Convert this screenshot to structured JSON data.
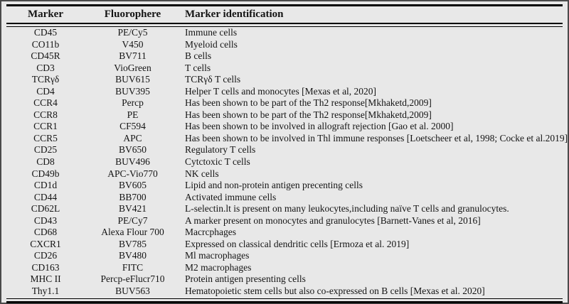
{
  "colors": {
    "page_background": "#e8e8e8",
    "text": "#141414",
    "rule": "#000000",
    "outer_frame": "#4a4a4a"
  },
  "table": {
    "columns": {
      "marker": "Marker",
      "fluorophore": "Fluorophere",
      "identification": "Marker identification"
    },
    "rows": [
      {
        "marker": "CD45",
        "fluorophore": "PE/Cy5",
        "identification": "Immune cells"
      },
      {
        "marker": "CO11b",
        "fluorophore": "V450",
        "identification": "Myeloid cells"
      },
      {
        "marker": "CD45R",
        "fluorophore": "BV711",
        "identification": "B cells"
      },
      {
        "marker": "CD3",
        "fluorophore": "VioGreen",
        "identification": "T cells"
      },
      {
        "marker": "TCRγδ",
        "fluorophore": "BUV615",
        "identification": "TCRγδ T cells"
      },
      {
        "marker": "CD4",
        "fluorophore": "BUV395",
        "identification": "Helper T cells and monocytes [Mexas et al, 2020]"
      },
      {
        "marker": "CCR4",
        "fluorophore": "Percp",
        "identification": "Has been shown to be part of the Th2 response[Mkhaketd,2009]"
      },
      {
        "marker": "CCR8",
        "fluorophore": "PE",
        "identification": "Has been shown to be part of the Th2 response[Mkhaketd,2009]"
      },
      {
        "marker": "CCR1",
        "fluorophore": "CF594",
        "identification": "Has been shown to be involved in allograft rejection [Gao et al. 2000]"
      },
      {
        "marker": "CCR5",
        "fluorophore": "APC",
        "identification": "Has been shown to be involved in Thl immune responses [Loetscheer et al, 1998; Cocke et al.2019]"
      },
      {
        "marker": "CD25",
        "fluorophore": "BV650",
        "identification": "Regulatory T cells"
      },
      {
        "marker": "CD8",
        "fluorophore": "BUV496",
        "identification": "Cytctoxic T cells"
      },
      {
        "marker": "CD49b",
        "fluorophore": "APC-Vio770",
        "identification": "NK cells"
      },
      {
        "marker": "CD1d",
        "fluorophore": "BV605",
        "identification": "Lipid and non-protein antigen precenting cells"
      },
      {
        "marker": "CD44",
        "fluorophore": "BB700",
        "identification": "Activated immune cells"
      },
      {
        "marker": "CD62L",
        "fluorophore": "BV421",
        "identification": "L-selectin.lt is present on many leukocytes,including naïve T cells and granulocytes."
      },
      {
        "marker": "CD43",
        "fluorophore": "PE/Cy7",
        "identification": "A marker present on monocytes and granulocytes [Barnett-Vanes et al, 2016]"
      },
      {
        "marker": "CD68",
        "fluorophore": "Alexa Flour 700",
        "identification": "Macrcphages"
      },
      {
        "marker": "CXCR1",
        "fluorophore": "BV785",
        "identification": "Expressed on classical dendritic cells [Ermoza et al. 2019]"
      },
      {
        "marker": "CD26",
        "fluorophore": "BV480",
        "identification": "Ml macrophages"
      },
      {
        "marker": "CD163",
        "fluorophore": "FITC",
        "identification": "M2 macrophages"
      },
      {
        "marker": "MHC II",
        "fluorophore": "Percp-eFlucr710",
        "identification": "Protein antigen presenting cells"
      },
      {
        "marker": "Thy1.1",
        "fluorophore": "BUV563",
        "identification": "Hematopoietic stem cells but also co-expressed on B cells [Mexas et al. 2020]"
      }
    ]
  }
}
